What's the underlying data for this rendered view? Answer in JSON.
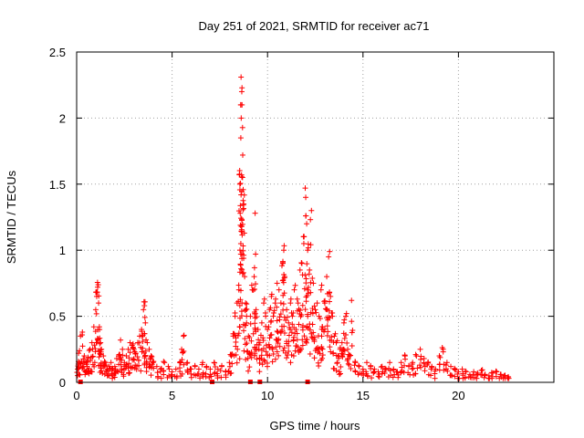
{
  "chart_data": {
    "type": "scatter",
    "title": "Day 251 of 2021, SRMTID for receiver ac71",
    "xlabel": "GPS time / hours",
    "ylabel": "SRMTID / TECUs",
    "xlim": [
      0,
      25
    ],
    "ylim": [
      0,
      2.5
    ],
    "x_ticks": [
      0,
      5,
      10,
      15,
      20
    ],
    "x_tick_labels": [
      "0",
      "5",
      "10",
      "15",
      "20"
    ],
    "y_ticks": [
      0,
      0.5,
      1,
      1.5,
      2,
      2.5
    ],
    "y_tick_labels": [
      "0",
      "0.5",
      "1",
      "1.5",
      "2",
      "2.5"
    ],
    "grid": true,
    "marker": "plus",
    "color": "#ff0000",
    "series": [
      {
        "name": "SRMTID",
        "x": [
          0.05,
          0.1,
          0.15,
          0.2,
          0.3,
          0.4,
          0.5,
          0.55,
          0.6,
          0.7,
          0.8,
          0.9,
          1.0,
          1.05,
          1.1,
          1.15,
          1.2,
          1.25,
          1.3,
          1.4,
          1.5,
          1.6,
          1.7,
          1.8,
          1.9,
          2.0,
          2.1,
          2.2,
          2.3,
          2.4,
          2.5,
          2.6,
          2.7,
          2.8,
          2.9,
          3.0,
          3.1,
          3.2,
          3.3,
          3.4,
          3.5,
          3.55,
          3.6,
          3.7,
          3.8,
          3.9,
          4.0,
          4.2,
          4.4,
          4.6,
          4.8,
          5.0,
          5.2,
          5.4,
          5.5,
          5.6,
          5.8,
          6.0,
          6.2,
          6.4,
          6.6,
          6.8,
          7.0,
          7.2,
          7.4,
          7.6,
          7.8,
          8.0,
          8.1,
          8.2,
          8.3,
          8.4,
          8.5,
          8.55,
          8.6,
          8.62,
          8.65,
          8.7,
          8.75,
          8.8,
          8.85,
          8.9,
          9.0,
          9.1,
          9.2,
          9.3,
          9.35,
          9.4,
          9.5,
          9.6,
          9.7,
          9.8,
          9.9,
          10.0,
          10.1,
          10.2,
          10.3,
          10.4,
          10.5,
          10.6,
          10.7,
          10.8,
          10.85,
          10.9,
          11.0,
          11.1,
          11.2,
          11.3,
          11.4,
          11.5,
          11.6,
          11.7,
          11.8,
          11.9,
          12.0,
          12.05,
          12.1,
          12.2,
          12.3,
          12.4,
          12.5,
          12.6,
          12.7,
          12.8,
          12.9,
          13.0,
          13.1,
          13.2,
          13.3,
          13.4,
          13.5,
          13.6,
          13.7,
          13.8,
          13.9,
          14.0,
          14.1,
          14.2,
          14.3,
          14.4,
          14.6,
          14.8,
          15.0,
          15.2,
          15.4,
          15.6,
          15.8,
          16.0,
          16.2,
          16.4,
          16.6,
          16.8,
          17.0,
          17.2,
          17.4,
          17.6,
          17.8,
          18.0,
          18.2,
          18.4,
          18.6,
          18.8,
          19.0,
          19.2,
          19.4,
          19.6,
          19.8,
          20.0,
          20.2,
          20.4,
          20.6,
          20.8,
          21.0,
          21.2,
          21.4,
          21.6,
          21.8,
          22.0,
          22.2,
          22.4,
          22.6
        ],
        "y": [
          0.1,
          0.22,
          0.15,
          0.35,
          0.38,
          0.2,
          0.15,
          0.12,
          0.18,
          0.25,
          0.3,
          0.42,
          0.55,
          0.65,
          0.72,
          0.6,
          0.4,
          0.3,
          0.25,
          0.2,
          0.15,
          0.1,
          0.12,
          0.15,
          0.1,
          0.12,
          0.18,
          0.2,
          0.32,
          0.25,
          0.15,
          0.2,
          0.25,
          0.3,
          0.28,
          0.25,
          0.22,
          0.3,
          0.35,
          0.4,
          0.55,
          0.58,
          0.45,
          0.3,
          0.25,
          0.2,
          0.15,
          0.12,
          0.1,
          0.15,
          0.12,
          0.08,
          0.1,
          0.15,
          0.25,
          0.35,
          0.15,
          0.1,
          0.12,
          0.1,
          0.15,
          0.12,
          0.1,
          0.15,
          0.1,
          0.12,
          0.08,
          0.15,
          0.2,
          0.35,
          0.5,
          0.6,
          0.7,
          1.5,
          1.85,
          2.0,
          2.2,
          1.72,
          1.35,
          0.8,
          0.6,
          0.45,
          0.35,
          0.5,
          0.7,
          0.8,
          1.28,
          0.55,
          0.4,
          0.3,
          0.45,
          0.6,
          0.5,
          0.4,
          0.55,
          0.65,
          0.5,
          0.6,
          0.75,
          0.7,
          0.6,
          0.9,
          1.0,
          0.8,
          0.55,
          0.45,
          0.6,
          0.5,
          0.7,
          0.4,
          0.6,
          0.85,
          0.9,
          1.05,
          1.4,
          1.2,
          1.0,
          0.85,
          1.3,
          0.75,
          0.55,
          0.6,
          0.5,
          0.7,
          0.4,
          0.6,
          0.8,
          0.95,
          0.65,
          0.5,
          0.35,
          0.3,
          0.2,
          0.25,
          0.3,
          0.45,
          0.5,
          0.25,
          0.2,
          0.62,
          0.15,
          0.12,
          0.1,
          0.15,
          0.12,
          0.1,
          0.08,
          0.12,
          0.1,
          0.15,
          0.1,
          0.08,
          0.15,
          0.2,
          0.12,
          0.15,
          0.2,
          0.25,
          0.18,
          0.15,
          0.12,
          0.1,
          0.2,
          0.25,
          0.15,
          0.12,
          0.1,
          0.08,
          0.1,
          0.08,
          0.06,
          0.08,
          0.07,
          0.09,
          0.06,
          0.05,
          0.07,
          0.08,
          0.06,
          0.05,
          0.04
        ]
      }
    ],
    "baseline_markers_x": [
      0.2,
      7.1,
      9.1,
      9.6,
      12.1
    ]
  }
}
